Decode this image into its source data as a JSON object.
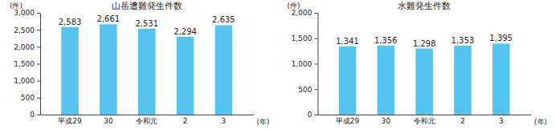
{
  "chart_data": [
    {
      "type": "bar",
      "title": "山岳遭難発生件数",
      "x_label": "(年)",
      "y_label": "(件)",
      "categories": [
        "平成29",
        "30",
        "令和元",
        "2",
        "3"
      ],
      "values": [
        2583,
        2661,
        2531,
        2294,
        2635
      ],
      "value_labels": [
        "2,583",
        "2,661",
        "2,531",
        "2,294",
        "2,635"
      ],
      "color": "#55c3ef",
      "data_labels": true,
      "grid": false,
      "ylim": [
        0,
        3000
      ],
      "yticks": [
        0,
        500,
        {
          "value": 1000,
          "label": "1,000"
        },
        {
          "value": 1500,
          "label": "1,500"
        },
        {
          "value": 2000,
          "label": "2,000"
        },
        {
          "value": 2500,
          "label": "2,500"
        },
        {
          "value": 3000,
          "label": "3,000"
        }
      ]
    },
    {
      "type": "bar",
      "title": "水難発生件数",
      "x_label": "(年)",
      "y_label": "(件)",
      "categories": [
        "平成29",
        "30",
        "令和元",
        "2",
        "3"
      ],
      "values": [
        1341,
        1356,
        1298,
        1353,
        1395
      ],
      "value_labels": [
        "1,341",
        "1,356",
        "1,298",
        "1,353",
        "1,395"
      ],
      "color": "#55c3ef",
      "data_labels": true,
      "grid": false,
      "ylim": [
        0,
        2000
      ],
      "yticks": [
        0,
        500,
        {
          "value": 1000,
          "label": "1,000"
        },
        {
          "value": 1500,
          "label": "1,500"
        },
        {
          "value": 2000,
          "label": "2,000"
        }
      ]
    }
  ]
}
